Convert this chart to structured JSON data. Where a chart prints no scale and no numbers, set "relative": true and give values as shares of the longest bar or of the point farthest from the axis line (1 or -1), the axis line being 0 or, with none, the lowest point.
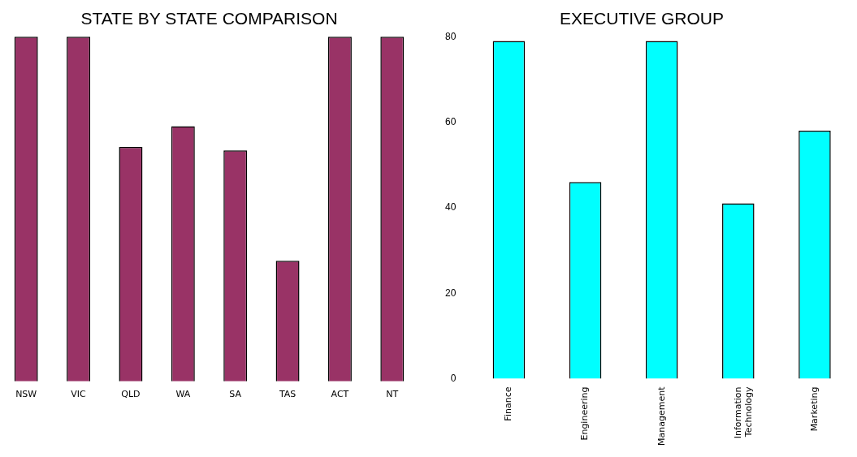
{
  "chart_data": [
    {
      "type": "bar",
      "title": "STATE BY STATE COMPARISON",
      "categories": [
        "NSW",
        "VIC",
        "QLD",
        "WA",
        "SA",
        "TAS",
        "ACT",
        "NT"
      ],
      "values": [
        1,
        1,
        0.68,
        0.74,
        0.67,
        0.35,
        1,
        1
      ],
      "color": "#993366",
      "relative": true,
      "tick_labels": "x"
    },
    {
      "type": "bar",
      "title": "EXECUTIVE GROUP",
      "categories": [
        "Finance",
        "Engineering",
        "Management",
        "Information Technology",
        "Marketing"
      ],
      "values": [
        79,
        46,
        79,
        41,
        58
      ],
      "color": "#00ffff",
      "ylim": [
        0,
        80
      ],
      "yticks": [
        0,
        20,
        40,
        60,
        80
      ]
    }
  ]
}
